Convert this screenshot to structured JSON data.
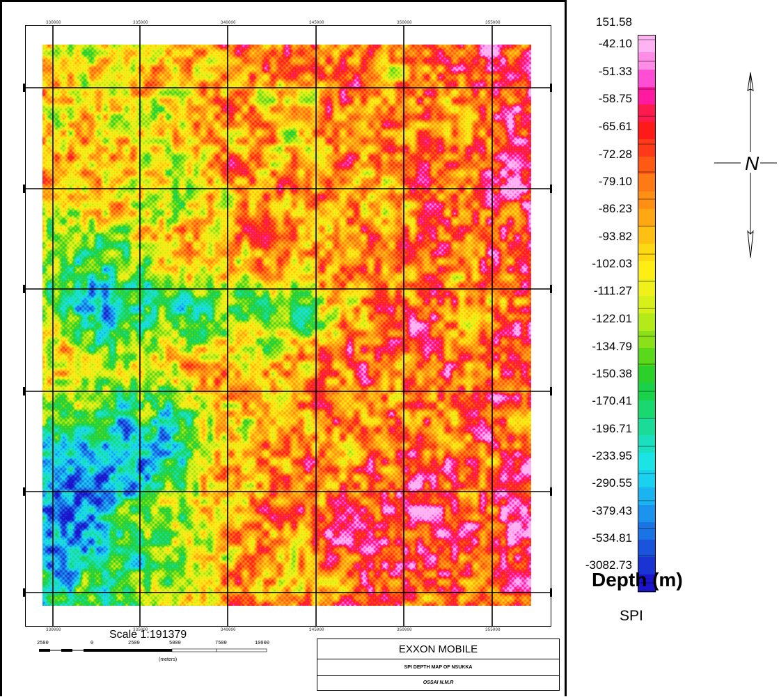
{
  "map": {
    "grid_lines": "6x6",
    "top_tick_labels": [
      "330000",
      "335000",
      "340000",
      "345000",
      "350000",
      "355000"
    ],
    "bottom_tick_labels": [
      "330000",
      "335000",
      "340000",
      "345000",
      "350000",
      "355000"
    ]
  },
  "legend": {
    "values": [
      "151.58",
      "-42.10",
      "-51.33",
      "-58.75",
      "-65.61",
      "-72.28",
      "-79.10",
      "-86.23",
      "-93.82",
      "-102.03",
      "-111.27",
      "-122.01",
      "-134.79",
      "-150.38",
      "-170.41",
      "-196.71",
      "-233.95",
      "-290.55",
      "-379.43",
      "-534.81",
      "-3082.73"
    ],
    "colors_top_to_bottom": [
      "#ffb3f2",
      "#ff8ce6",
      "#ff4dd4",
      "#ff1aa0",
      "#ff1a4d",
      "#ff1a1a",
      "#ff3a1a",
      "#ff5a14",
      "#ff7a14",
      "#ff9014",
      "#ffa814",
      "#ffc014",
      "#ffd814",
      "#ffee14",
      "#f0f01a",
      "#d8f01a",
      "#b4ea1a",
      "#8ce01a",
      "#5ad81a",
      "#2cd02a",
      "#1ad24a",
      "#1ad870",
      "#1adc98",
      "#1ae0c0",
      "#1ae4e4",
      "#1ad2f0",
      "#1ab4f0",
      "#1a94ec",
      "#1a74e4",
      "#1a54dc",
      "#1a34d4",
      "#1a14cc"
    ],
    "title": "Depth (m)",
    "subtitle": "SPI"
  },
  "scale": {
    "label": "Scale 1:191379",
    "ticks": [
      "2500",
      "0",
      "2500",
      "5000",
      "7500",
      "10000"
    ],
    "units": "(meters)"
  },
  "title_block": {
    "company": "EXXON MOBILE",
    "map_title": "SPI DEPTH MAP OF NSUKKA",
    "author": "OSSAI N.M.R"
  },
  "north_arrow": {
    "icon": "north-arrow-icon",
    "letter": "N"
  }
}
